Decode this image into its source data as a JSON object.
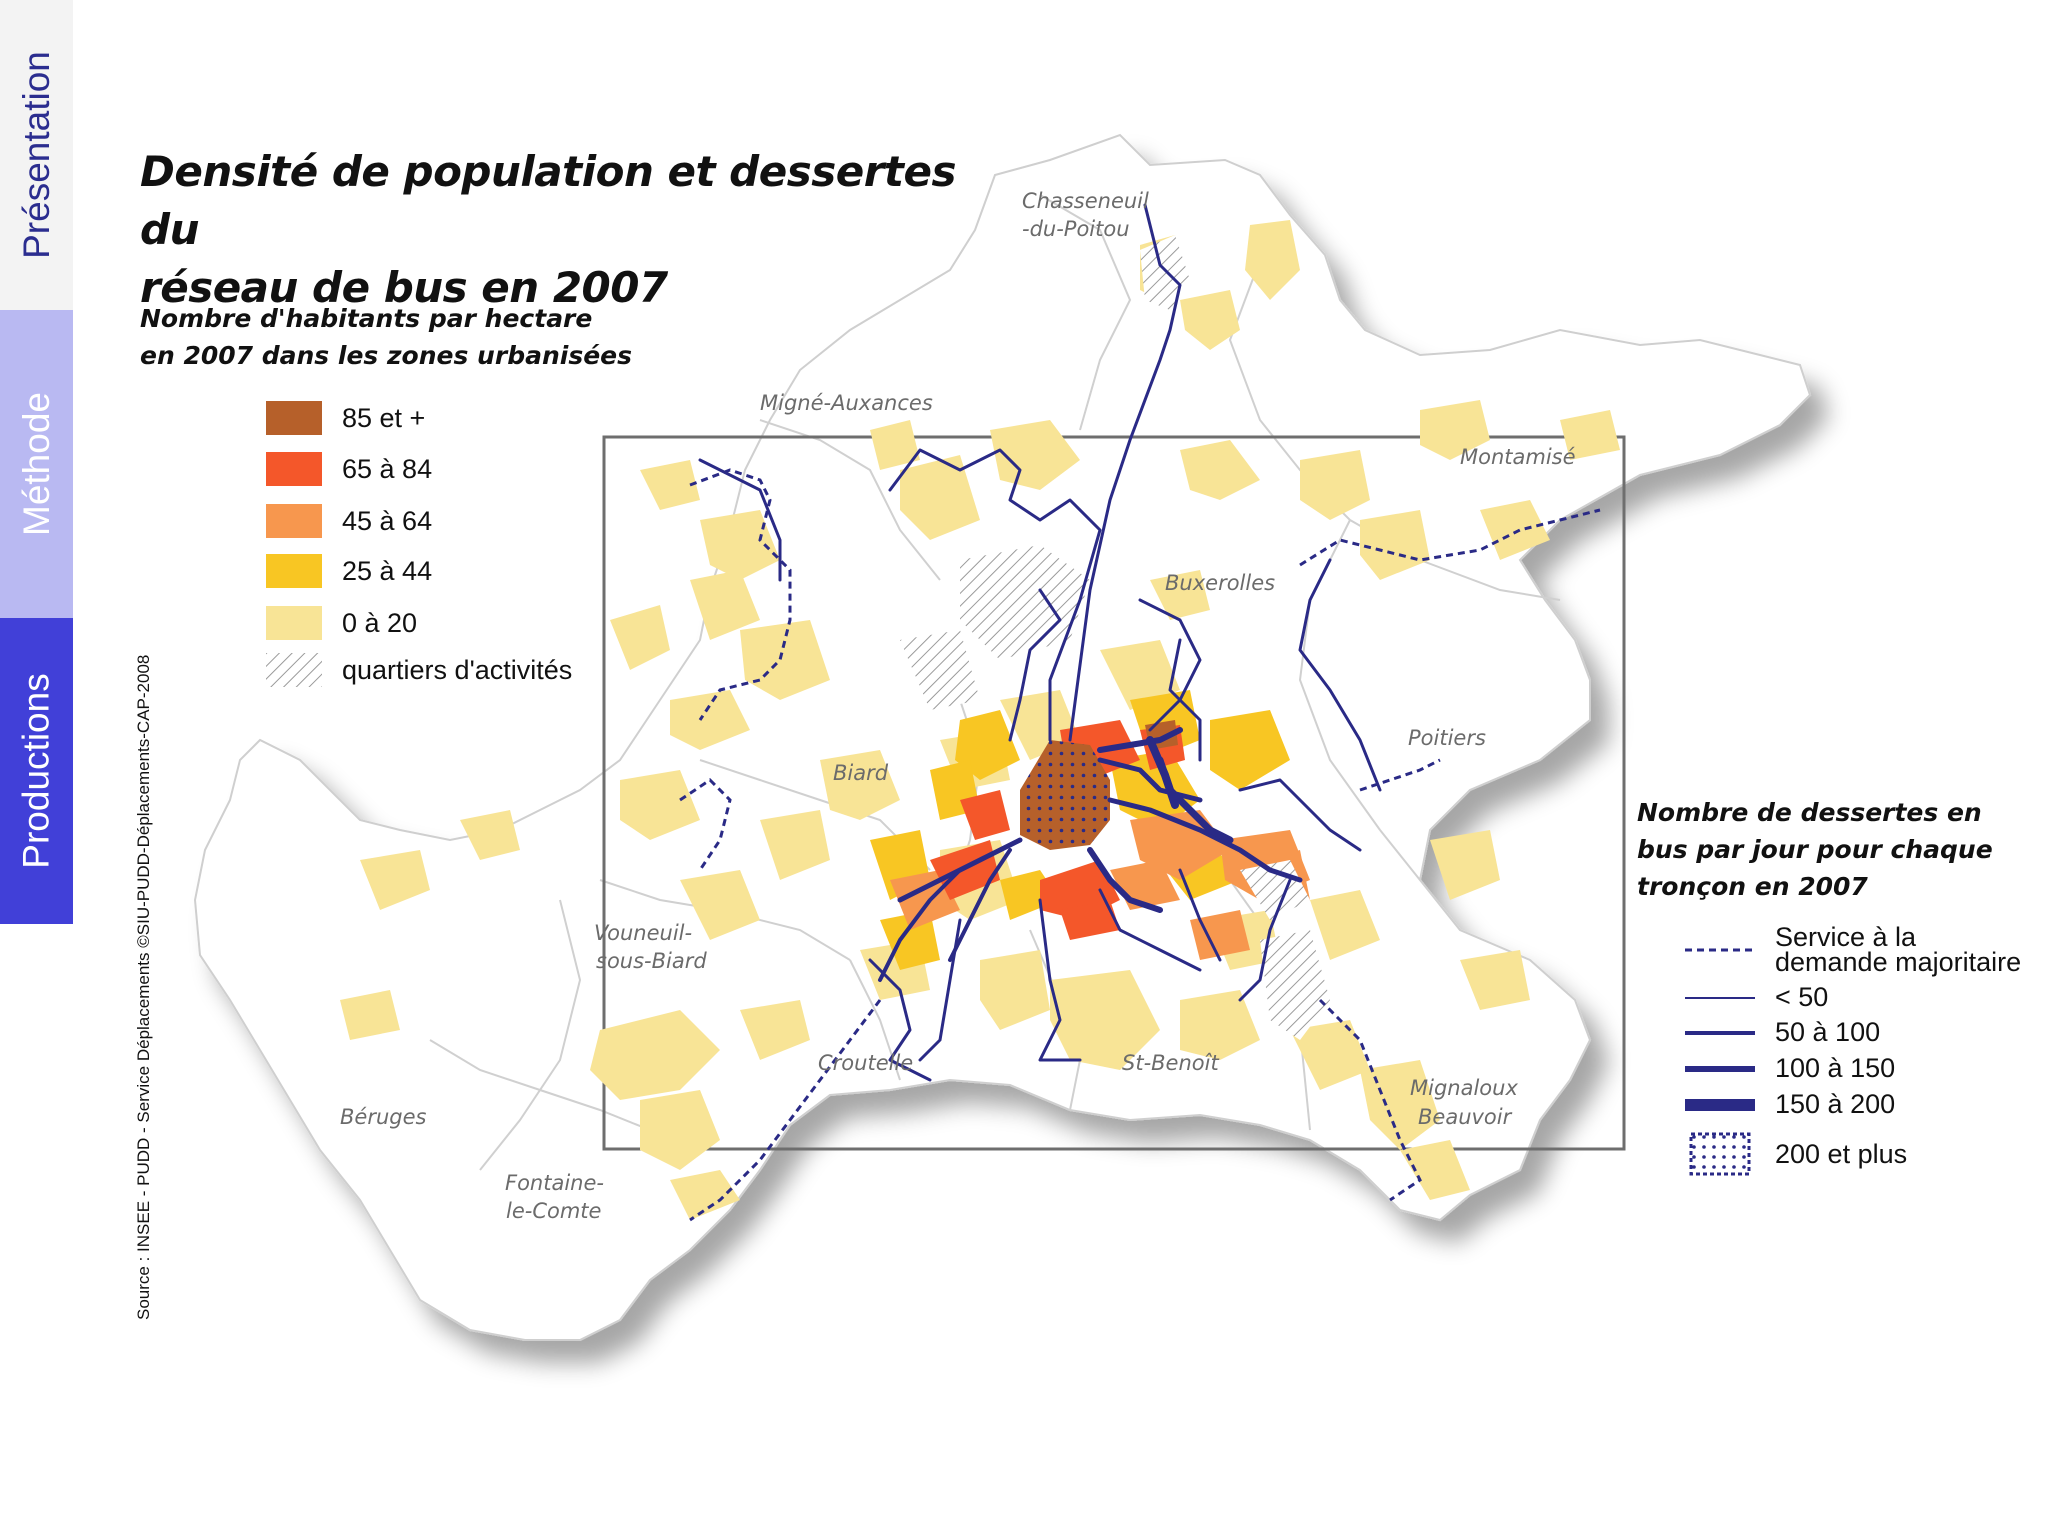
{
  "nav": {
    "tabs": [
      {
        "label": "Présentation",
        "state": "normal"
      },
      {
        "label": "Méthode",
        "state": "normal"
      },
      {
        "label": "Productions",
        "state": "selected"
      }
    ]
  },
  "map": {
    "title": "Densité de population et dessertes du réseau de bus en 2007",
    "title_line1": "Densité de population et dessertes du",
    "title_line2": "réseau de bus en 2007",
    "density_legend": {
      "title_line1": "Nombre d'habitants par hectare",
      "title_line2": "en 2007 dans les zones urbanisées",
      "items": [
        {
          "label": "85 et +",
          "color": "#b6602a"
        },
        {
          "label": "65 à 84",
          "color": "#f4572a"
        },
        {
          "label": "45 à 64",
          "color": "#f7974e"
        },
        {
          "label": "25 à 44",
          "color": "#f8c623"
        },
        {
          "label": "0 à 20",
          "color": "#f8e496"
        },
        {
          "label": "quartiers d'activités",
          "color": "hatched"
        }
      ]
    },
    "bus_legend": {
      "title_line1": "Nombre de dessertes en",
      "title_line2": "bus par jour pour chaque",
      "title_line3": "tronçon en 2007",
      "items": [
        {
          "label_line1": "Service à la",
          "label_line2": "demande majoritaire",
          "style": "dashed"
        },
        {
          "label": "< 50",
          "style": "line-1"
        },
        {
          "label": "50 à 100",
          "style": "line-2"
        },
        {
          "label": "100 à 150",
          "style": "line-3"
        },
        {
          "label": "150 à 200",
          "style": "line-4"
        },
        {
          "label": "200 et plus",
          "style": "dotted-box"
        }
      ],
      "line_color": "#2a2a86"
    },
    "places": {
      "chasseneuil_1": "Chasseneuil",
      "chasseneuil_2": "-du-Poitou",
      "migne": "Migné-Auxances",
      "montamise": "Montamisé",
      "buxerolles": "Buxerolles",
      "biard": "Biard",
      "poitiers": "Poitiers",
      "vouneuil_1": "Vouneuil-",
      "vouneuil_2": "sous-Biard",
      "croutelle": "Croutelle",
      "st_benoit": "St-Benoît",
      "mignaloux_1": "Mignaloux",
      "mignaloux_2": "Beauvoir",
      "beruges": "Béruges",
      "fontaine_1": "Fontaine-",
      "fontaine_2": "le-Comte"
    },
    "source": "Source : INSEE - PUDD - Service Déplacements ©SIU-PUDD-Déplacements-CAP-2008"
  }
}
